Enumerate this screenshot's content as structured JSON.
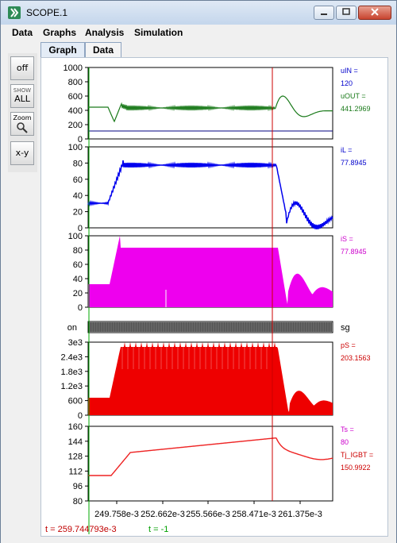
{
  "window": {
    "title": "SCOPE.1"
  },
  "menu": {
    "items": [
      "Data",
      "Graphs",
      "Analysis",
      "Simulation"
    ]
  },
  "tabs": [
    {
      "label": "Graph",
      "active": true
    },
    {
      "label": "Data",
      "active": false
    }
  ],
  "toolbar": {
    "off_label": "off",
    "show_all_label_1": "SHOW",
    "show_all_label_2": "ALL",
    "zoom_label": "Zoom",
    "xy_label": "x-y"
  },
  "cursor": {
    "t_label": "t = 259.744793e-3",
    "t2_label": "t = -1"
  },
  "x_axis": {
    "ticks": [
      "249.758e-3",
      "252.662e-3",
      "255.566e-3",
      "258.471e-3",
      "261.375e-3"
    ]
  },
  "panels": [
    {
      "id": "volt",
      "yticks": [
        "1000",
        "800",
        "600",
        "400",
        "200",
        "0"
      ],
      "legend": [
        {
          "text": "uIN =",
          "color": "#0000cc"
        },
        {
          "text": "120",
          "color": "#0000cc"
        },
        {
          "text": "uOUT =",
          "color": "#1a7a1a"
        },
        {
          "text": "441.2969",
          "color": "#1a7a1a"
        }
      ]
    },
    {
      "id": "iL",
      "yticks": [
        "100",
        "80",
        "60",
        "40",
        "20",
        "0"
      ],
      "legend": [
        {
          "text": "iL =",
          "color": "#0000cc"
        },
        {
          "text": "77.8945",
          "color": "#0000cc"
        }
      ]
    },
    {
      "id": "iS",
      "yticks": [
        "100",
        "80",
        "60",
        "40",
        "20",
        "0"
      ],
      "legend": [
        {
          "text": "iS =",
          "color": "#cc00cc"
        },
        {
          "text": "77.8945",
          "color": "#cc00cc"
        }
      ]
    },
    {
      "id": "sg",
      "label_left": "on",
      "label_right": "sg"
    },
    {
      "id": "pS",
      "yticks": [
        "3e3",
        "2.4e3",
        "1.8e3",
        "1.2e3",
        "600",
        "0"
      ],
      "legend": [
        {
          "text": "pS =",
          "color": "#cc0000"
        },
        {
          "text": "203.1563",
          "color": "#cc0000"
        }
      ]
    },
    {
      "id": "Ts",
      "yticks": [
        "160",
        "144",
        "128",
        "112",
        "96",
        "80"
      ],
      "legend": [
        {
          "text": "Ts =",
          "color": "#cc00cc"
        },
        {
          "text": "80",
          "color": "#cc00cc"
        },
        {
          "text": "Tj_IGBT =",
          "color": "#cc0000"
        },
        {
          "text": "150.9922",
          "color": "#cc0000"
        }
      ]
    }
  ],
  "colors": {
    "uIN": "#000080",
    "uOUT": "#1a7a1a",
    "iL": "#0000ee",
    "iS": "#ee00ee",
    "pS": "#ee0000",
    "Ts": "#ee2222",
    "cursor": "#cc0000",
    "startline": "#00aa00"
  }
}
